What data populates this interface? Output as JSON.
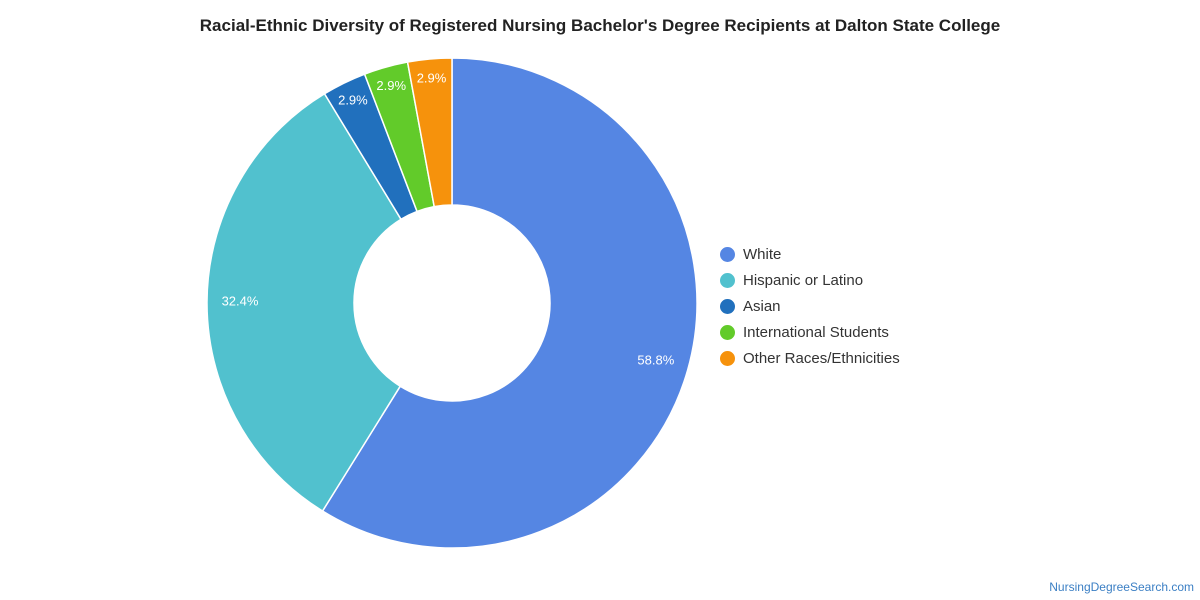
{
  "chart_data": {
    "type": "pie",
    "title": "Racial-Ethnic Diversity of Registered Nursing Bachelor's Degree Recipients at Dalton State College",
    "donut": true,
    "legend_position": "right",
    "slices": [
      {
        "label": "White",
        "value": 58.8,
        "display": "58.8%",
        "color": "#5586e3"
      },
      {
        "label": "Hispanic or Latino",
        "value": 32.4,
        "display": "32.4%",
        "color": "#51c1ce"
      },
      {
        "label": "Asian",
        "value": 2.9,
        "display": "2.9%",
        "color": "#2170bd"
      },
      {
        "label": "International Students",
        "value": 2.9,
        "display": "2.9%",
        "color": "#62cb2a"
      },
      {
        "label": "Other Races/Ethnicities",
        "value": 2.9,
        "display": "2.9%",
        "color": "#f6920c"
      }
    ]
  },
  "footer": {
    "source": "NursingDegreeSearch.com"
  }
}
